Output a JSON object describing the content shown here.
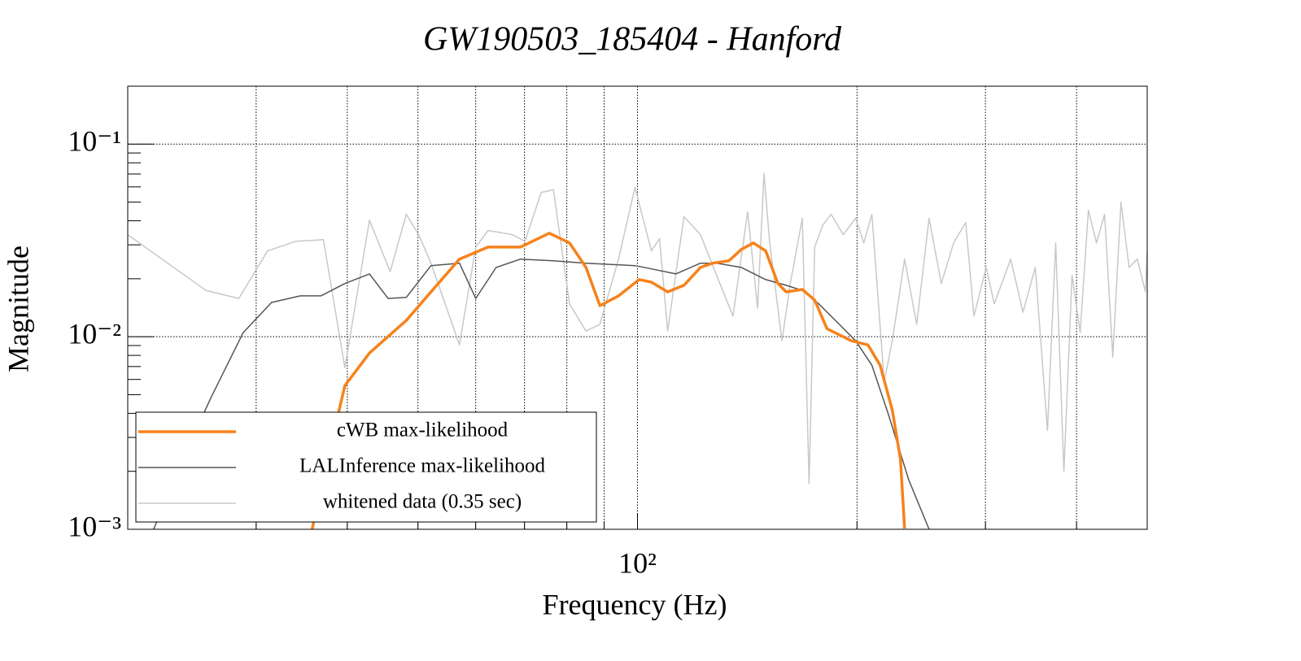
{
  "chart_data": {
    "type": "line",
    "title": "GW190503_185404 - Hanford",
    "xlabel": "Frequency (Hz)",
    "ylabel": "Magnitude",
    "xscale": "log",
    "yscale": "log",
    "xlim": [
      20,
      500
    ],
    "ylim": [
      0.001,
      0.2
    ],
    "xticks": [
      {
        "value": 100,
        "label": "10²"
      }
    ],
    "xminor_ticks": [
      30,
      40,
      50,
      60,
      70,
      80,
      90,
      200,
      300,
      400
    ],
    "yticks": [
      {
        "value": 0.001,
        "label": "10⁻³"
      },
      {
        "value": 0.01,
        "label": "10⁻²"
      },
      {
        "value": 0.1,
        "label": "10⁻¹"
      }
    ],
    "yminor_ticks": [
      0.002,
      0.003,
      0.004,
      0.005,
      0.006,
      0.007,
      0.008,
      0.009,
      0.02,
      0.03,
      0.04,
      0.05,
      0.06,
      0.07,
      0.08,
      0.09,
      0.2
    ],
    "grid": true,
    "legend": "lower left",
    "series": [
      {
        "name": "cWB max-likelihood",
        "color": "#f7821b",
        "width": 3.5,
        "x": [
          35.8,
          37.7,
          39.7,
          42.9,
          48.2,
          52.1,
          57.0,
          62.4,
          69.1,
          75.7,
          80.7,
          85.0,
          88.8,
          94.2,
          100.5,
          104.5,
          110.0,
          115.8,
          122.0,
          126.8,
          133.5,
          138.8,
          144.2,
          149.9,
          155.8,
          159.9,
          168.3,
          175.0,
          181.9,
          196.5,
          207.0,
          215.1,
          223.6,
          229.4,
          232.4
        ],
        "values": [
          0.001,
          0.00243,
          0.00557,
          0.00823,
          0.01215,
          0.0171,
          0.0253,
          0.0292,
          0.0292,
          0.0345,
          0.0307,
          0.0229,
          0.0145,
          0.0163,
          0.0198,
          0.0192,
          0.0171,
          0.0185,
          0.0229,
          0.0241,
          0.0248,
          0.0284,
          0.0307,
          0.0279,
          0.0189,
          0.0171,
          0.0176,
          0.0155,
          0.011,
          0.00952,
          0.00907,
          0.00711,
          0.00416,
          0.00231,
          0.00101
        ]
      },
      {
        "name": "LALInference max-likelihood",
        "color": "#555555",
        "width": 1.5,
        "x": [
          21.7,
          23.4,
          26.0,
          28.8,
          31.5,
          34.5,
          36.8,
          39.7,
          42.9,
          45.5,
          48.2,
          52.1,
          57.0,
          60.0,
          64.0,
          69.1,
          76.7,
          85.0,
          99.2,
          104.5,
          112.9,
          122.0,
          128.4,
          138.8,
          149.9,
          159.9,
          168.3,
          177.3,
          189.1,
          199.1,
          209.6,
          220.8,
          235.4,
          251.1
        ],
        "values": [
          0.001,
          0.002,
          0.00481,
          0.0105,
          0.01507,
          0.0163,
          0.0163,
          0.0189,
          0.0212,
          0.0158,
          0.016,
          0.0234,
          0.0241,
          0.0158,
          0.0229,
          0.0253,
          0.0248,
          0.0241,
          0.0234,
          0.0225,
          0.0212,
          0.0241,
          0.0241,
          0.0229,
          0.0198,
          0.0185,
          0.0174,
          0.0148,
          0.0116,
          0.00952,
          0.00711,
          0.00396,
          0.00181,
          0.001
        ]
      },
      {
        "name": "whitened data (0.35 sec)",
        "color": "#c8c8c8",
        "width": 1.5,
        "x": [
          20.0,
          25.6,
          28.4,
          31.1,
          34.0,
          37.1,
          39.7,
          42.9,
          45.8,
          48.2,
          50.1,
          52.1,
          57.0,
          60.0,
          62.4,
          67.4,
          70.1,
          73.8,
          76.7,
          80.7,
          85.0,
          88.8,
          94.2,
          99.2,
          104.5,
          107.2,
          110.0,
          115.8,
          122.0,
          128.4,
          135.2,
          141.6,
          146.1,
          149.1,
          151.8,
          157.8,
          162.0,
          168.3,
          171.9,
          175.0,
          179.6,
          184.3,
          191.5,
          199.1,
          204.3,
          209.6,
          217.9,
          223.6,
          232.4,
          241.5,
          251.1,
          261.0,
          271.3,
          281.9,
          289.3,
          300.7,
          308.5,
          324.9,
          337.8,
          351.1,
          364.9,
          374.5,
          384.3,
          394.3,
          404.6,
          415.2,
          426.0,
          437.0,
          448.5,
          460.2,
          472.2,
          484.6,
          497.2,
          500
        ],
        "values": [
          0.0339,
          0.0174,
          0.0158,
          0.0279,
          0.0313,
          0.0319,
          0.0069,
          0.0403,
          0.0218,
          0.0432,
          0.0339,
          0.0241,
          0.00907,
          0.0292,
          0.0356,
          0.0339,
          0.0313,
          0.0562,
          0.0579,
          0.0148,
          0.0107,
          0.0116,
          0.0253,
          0.0596,
          0.0279,
          0.0323,
          0.0107,
          0.042,
          0.0339,
          0.0208,
          0.0128,
          0.0445,
          0.0141,
          0.0704,
          0.0307,
          0.00952,
          0.0189,
          0.0412,
          0.00173,
          0.0292,
          0.0381,
          0.0432,
          0.0339,
          0.0412,
          0.0307,
          0.0432,
          0.00585,
          0.00952,
          0.0253,
          0.0116,
          0.0412,
          0.0189,
          0.0307,
          0.0392,
          0.0128,
          0.0229,
          0.0148,
          0.0253,
          0.0134,
          0.0229,
          0.00326,
          0.0307,
          0.002,
          0.0208,
          0.0105,
          0.0454,
          0.0307,
          0.0432,
          0.00784,
          0.05,
          0.0229,
          0.0253,
          0.0171,
          0.0279
        ]
      }
    ]
  }
}
